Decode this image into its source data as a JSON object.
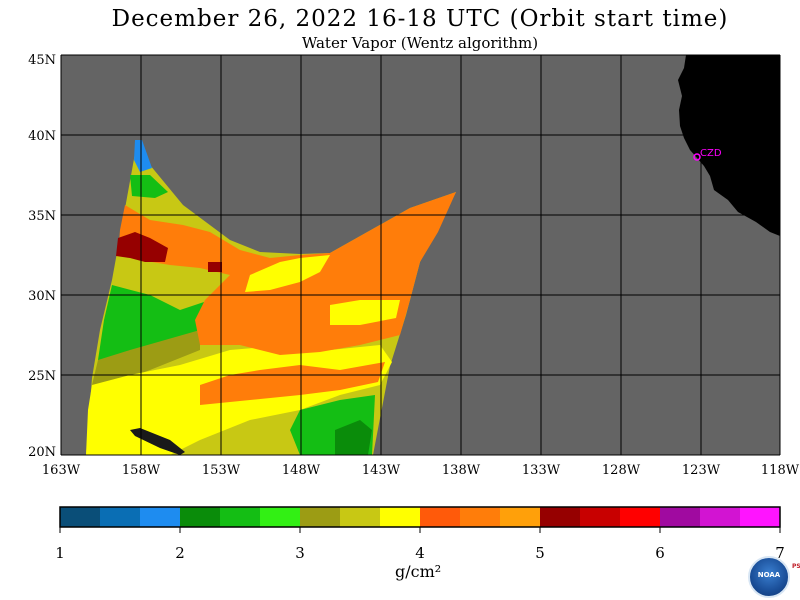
{
  "title": "December 26, 2022  16-18 UTC  (Orbit start time)",
  "subtitle": "Water Vapor (Wentz algorithm)",
  "lat_labels": [
    "45N",
    "40N",
    "35N",
    "30N",
    "25N",
    "20N"
  ],
  "lon_labels": [
    "163W",
    "158W",
    "153W",
    "148W",
    "143W",
    "138W",
    "133W",
    "128W",
    "123W",
    "118W"
  ],
  "colorbar": {
    "ticks": [
      "1",
      "2",
      "3",
      "4",
      "5",
      "6",
      "7"
    ],
    "units": "g/cm²",
    "colors": [
      "#0a4e78",
      "#0a6eb4",
      "#1e8cf0",
      "#0a8c0a",
      "#14be14",
      "#32f014",
      "#9c9c14",
      "#c8c814",
      "#ffff00",
      "#ff5a0a",
      "#ff7d0a",
      "#ffa00a",
      "#960000",
      "#c80000",
      "#ff0000",
      "#a00aa0",
      "#d214d2",
      "#ff14ff"
    ]
  },
  "station_label": "CZD",
  "colors": {
    "background": "#646464",
    "land": "#000000",
    "station": "#ff00ff"
  },
  "logo": {
    "text": "NOAA",
    "side_text": "PSL"
  }
}
